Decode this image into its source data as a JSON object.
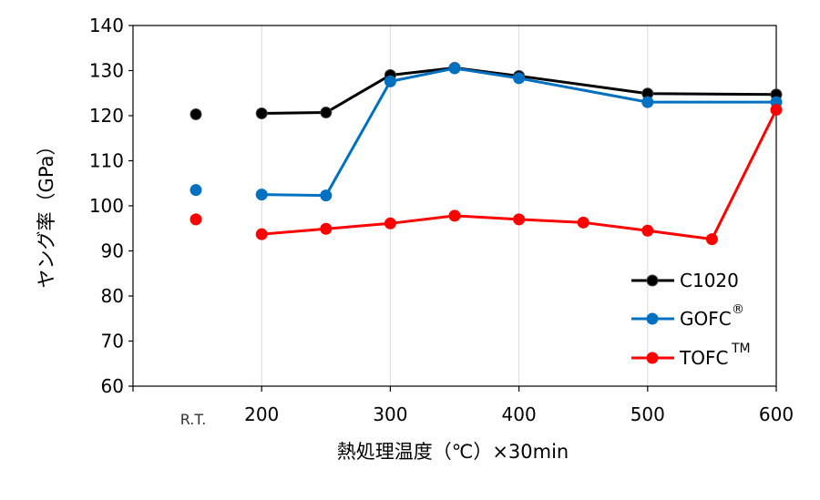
{
  "chart_data": {
    "type": "line",
    "xlabel": "熱処理温度（℃）×30min",
    "ylabel": "ヤング率（GPa）",
    "ylim": [
      60,
      140
    ],
    "yticks": [
      "60",
      "70",
      "80",
      "90",
      "100",
      "110",
      "120",
      "130",
      "140"
    ],
    "xticks": [
      "200",
      "300",
      "400",
      "500",
      "600"
    ],
    "rt_label": "R.T.",
    "xlim": [
      100,
      600
    ],
    "grid": "vertical",
    "legend_position": "bottom-right",
    "series": [
      {
        "name": "C1020",
        "name_sup": "",
        "color": "#000000",
        "rt": 120.3,
        "x": [
          200,
          250,
          300,
          350,
          400,
          500,
          600
        ],
        "y": [
          120.5,
          120.7,
          129.0,
          130.6,
          128.8,
          124.9,
          124.7
        ]
      },
      {
        "name": "GOFC",
        "name_sup": "®",
        "color": "#0070C0",
        "rt": 103.5,
        "x": [
          200,
          250,
          300,
          350,
          400,
          500,
          600
        ],
        "y": [
          102.5,
          102.3,
          127.6,
          130.5,
          128.3,
          123.0,
          123.0
        ]
      },
      {
        "name": "TOFC",
        "name_sup": "TM",
        "color": "#FF0000",
        "rt": 97.0,
        "x": [
          200,
          250,
          300,
          350,
          400,
          450,
          500,
          550,
          600
        ],
        "y": [
          93.7,
          94.9,
          96.1,
          97.8,
          97.0,
          96.3,
          94.5,
          92.6,
          121.3
        ]
      }
    ]
  }
}
